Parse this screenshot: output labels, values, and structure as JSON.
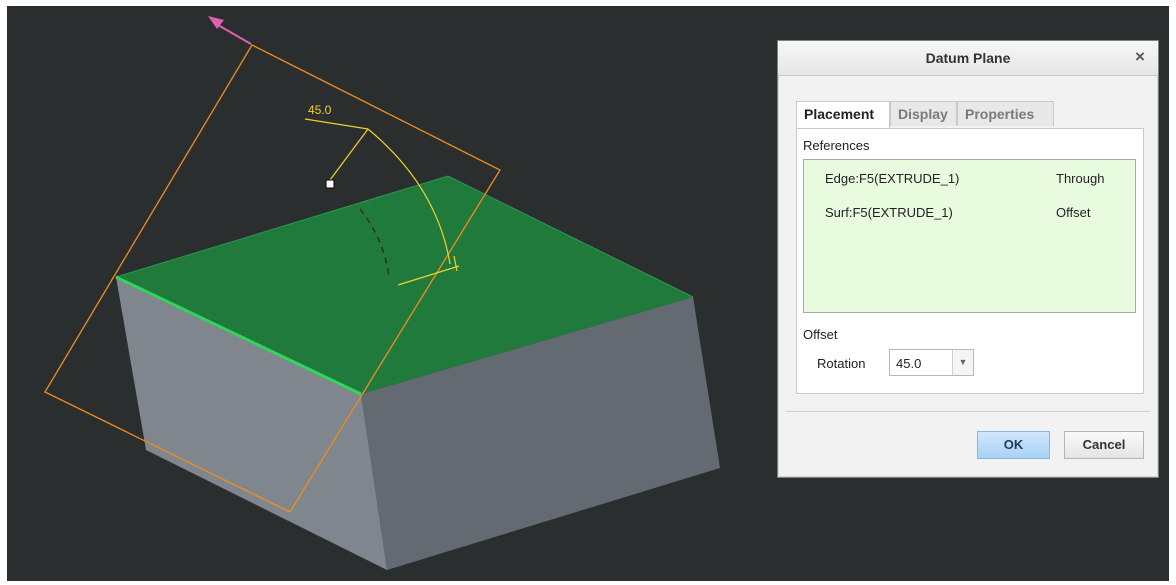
{
  "viewport": {
    "angle_label": "45.0",
    "colors": {
      "background": "#2b2e2f",
      "top_face": "#1f7a3c",
      "left_face": "#7f868d",
      "right_face": "#646a71",
      "datum_plane": "#f08c1e",
      "dimension": "#f0d22a",
      "highlight_edge": "#2fd65a",
      "arrow": "#e060b0"
    }
  },
  "dialog": {
    "title": "Datum Plane",
    "close_glyph": "×",
    "tabs": [
      "Placement",
      "Display",
      "Properties"
    ],
    "active_tab": "Placement",
    "references_label": "References",
    "references": [
      {
        "ref": "Edge:F5(EXTRUDE_1)",
        "constraint": "Through"
      },
      {
        "ref": "Surf:F5(EXTRUDE_1)",
        "constraint": "Offset"
      }
    ],
    "offset_label": "Offset",
    "rotation_label": "Rotation",
    "rotation_value": "45.0",
    "ok_label": "OK",
    "cancel_label": "Cancel"
  }
}
